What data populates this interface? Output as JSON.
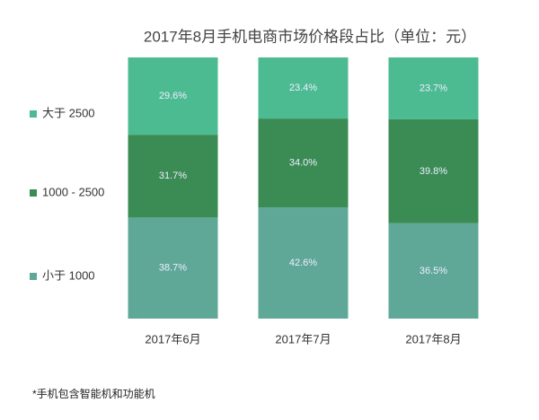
{
  "chart_data": {
    "type": "stacked_bar_100",
    "title": "2017年8月手机电商市场价格段占比（单位：元）",
    "footnote": "*手机包含智能机和功能机",
    "categories": [
      "2017年6月",
      "2017年7月",
      "2017年8月"
    ],
    "series": [
      {
        "name": "小于 1000",
        "color": "#5fa898",
        "values": [
          38.7,
          42.6,
          36.5
        ],
        "value_labels": [
          "38.7%",
          "42.6%",
          "36.5%"
        ]
      },
      {
        "name": "1000 - 2500",
        "color": "#3b8b55",
        "values": [
          31.7,
          34.0,
          39.8
        ],
        "value_labels": [
          "31.7%",
          "34.0%",
          "39.8%"
        ]
      },
      {
        "name": "大于 2500",
        "color": "#4dbb92",
        "values": [
          29.6,
          23.4,
          23.7
        ],
        "value_labels": [
          "29.6%",
          "23.4%",
          "23.7%"
        ]
      }
    ]
  }
}
